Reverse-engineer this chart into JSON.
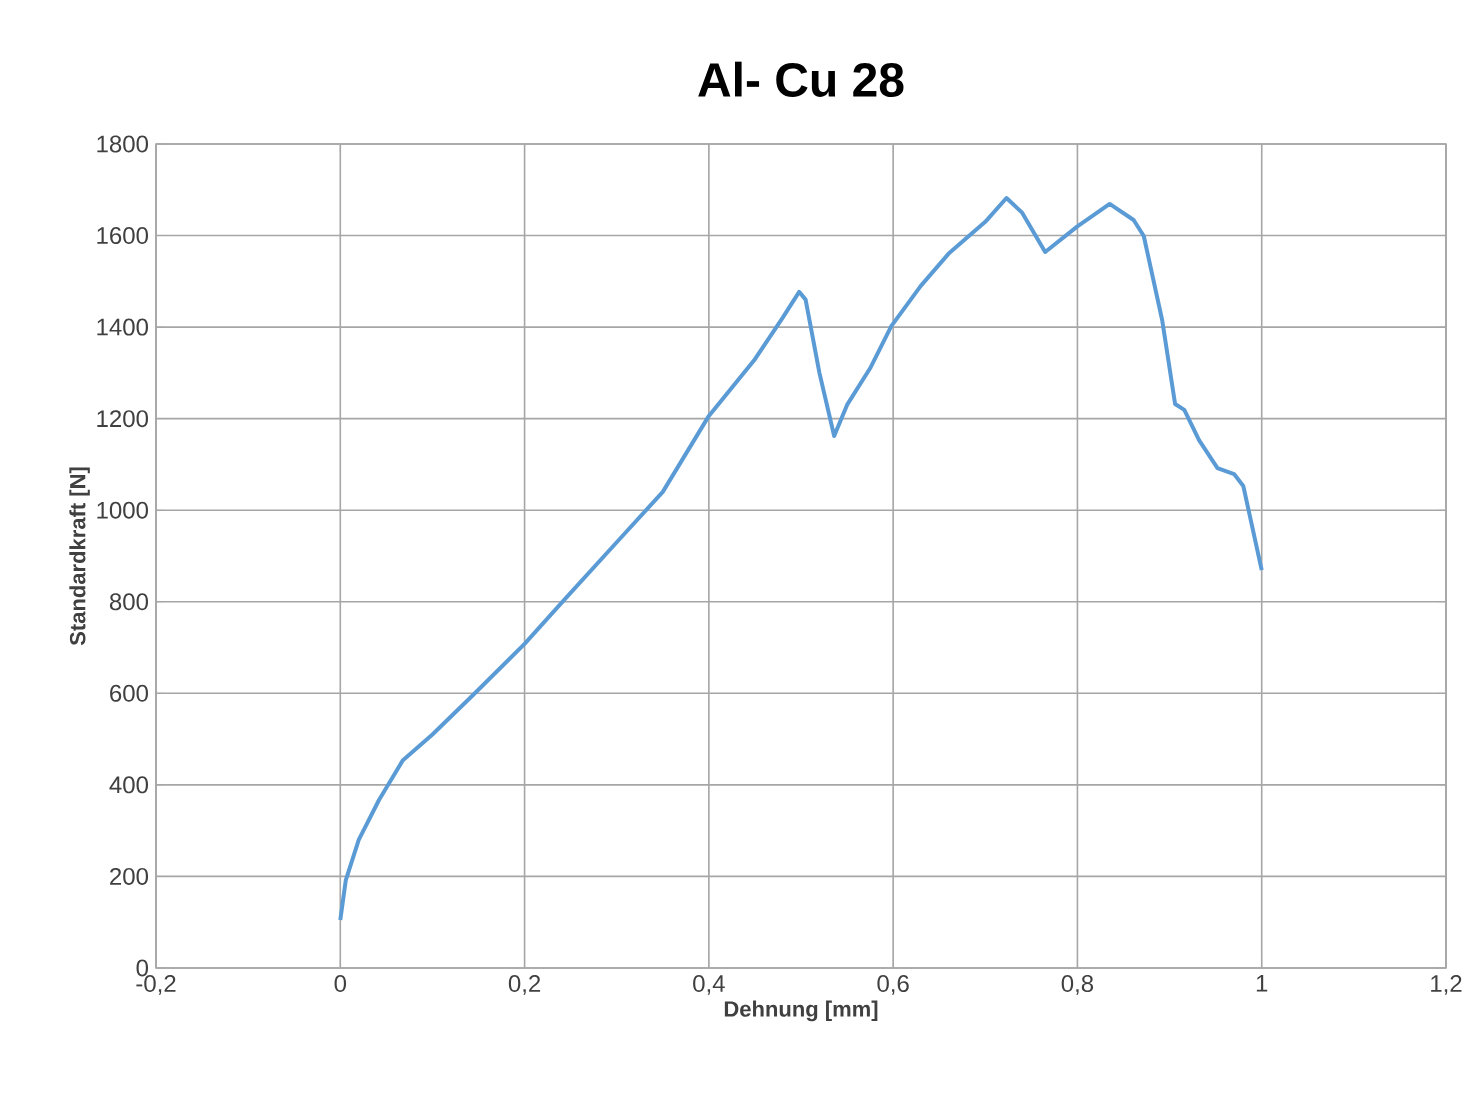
{
  "chart_data": {
    "type": "line",
    "title": "Al- Cu 28",
    "xlabel": "Dehnung [mm]",
    "ylabel": "Standardkraft [N]",
    "xlim": [
      -0.2,
      1.2
    ],
    "ylim": [
      0,
      1800
    ],
    "xticks": [
      {
        "value": -0.2,
        "label": "-0,2"
      },
      0,
      {
        "value": 0.2,
        "label": "0,2"
      },
      {
        "value": 0.4,
        "label": "0,4"
      },
      {
        "value": 0.6,
        "label": "0,6"
      },
      {
        "value": 0.8,
        "label": "0,8"
      },
      1,
      {
        "value": 1.2,
        "label": "1,2"
      }
    ],
    "yticks": [
      0,
      200,
      400,
      600,
      800,
      1000,
      1200,
      1400,
      1600,
      1800
    ],
    "grid": true,
    "marker": "none",
    "line_style": "solid",
    "series": [
      {
        "color": "#5b9bd5",
        "x": [
          0,
          0.006,
          0.02,
          0.042,
          0.068,
          0.1,
          0.143,
          0.2,
          0.243,
          0.3,
          0.35,
          0.4,
          0.45,
          0.48,
          0.498,
          0.505,
          0.52,
          0.536,
          0.55,
          0.575,
          0.598,
          0.63,
          0.66,
          0.7,
          0.723,
          0.74,
          0.765,
          0.8,
          0.835,
          0.861,
          0.872,
          0.892,
          0.906,
          0.916,
          0.932,
          0.952,
          0.97,
          0.98,
          1.0
        ],
        "values": [
          105,
          192,
          280,
          367,
          454,
          510,
          594,
          708,
          804,
          930,
          1040,
          1206,
          1330,
          1420,
          1477,
          1460,
          1300,
          1162,
          1230,
          1310,
          1402,
          1490,
          1560,
          1630,
          1682,
          1650,
          1564,
          1620,
          1669,
          1634,
          1599,
          1415,
          1232,
          1219,
          1153,
          1092,
          1079,
          1053,
          869
        ]
      }
    ]
  }
}
